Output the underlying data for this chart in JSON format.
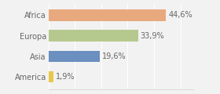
{
  "categories": [
    "Africa",
    "Europa",
    "Asia",
    "America"
  ],
  "values": [
    44.6,
    33.9,
    19.6,
    1.9
  ],
  "labels": [
    "44,6%",
    "33,9%",
    "19,6%",
    "1,9%"
  ],
  "colors": [
    "#e8a97e",
    "#b5c98e",
    "#6b8fbf",
    "#e8c84a"
  ],
  "background_color": "#f2f2f2",
  "xlim": [
    0,
    55
  ],
  "bar_height": 0.55,
  "label_fontsize": 7,
  "tick_fontsize": 7,
  "text_color": "#666666"
}
